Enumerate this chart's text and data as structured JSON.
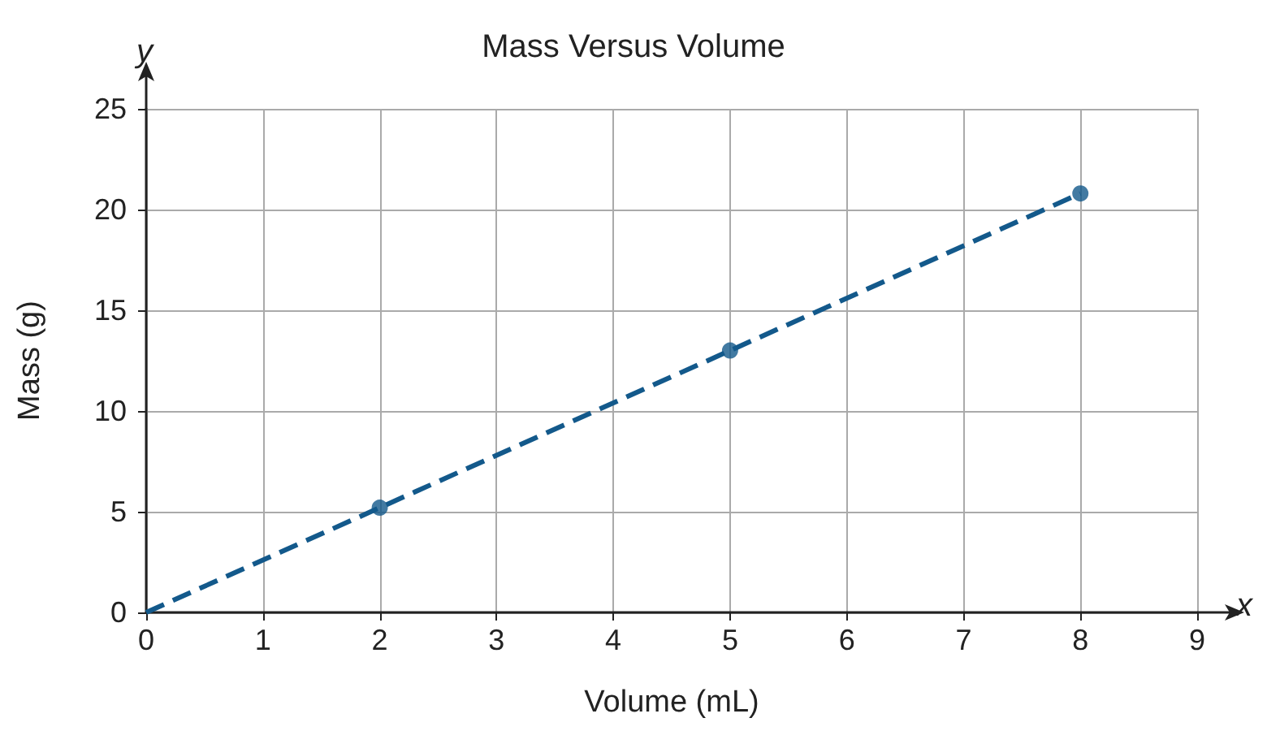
{
  "chart_data": {
    "type": "scatter",
    "title": "Mass Versus Volume",
    "xlabel": "Volume (mL)",
    "ylabel": "Mass (g)",
    "annotations": [
      "y",
      "x"
    ],
    "xlim": [
      0,
      9
    ],
    "xticks": [
      0,
      1,
      2,
      3,
      4,
      5,
      6,
      7,
      8,
      9
    ],
    "ylim": [
      0,
      25
    ],
    "yticks": [
      0,
      5,
      10,
      15,
      20,
      25
    ],
    "grid": true,
    "series": [
      {
        "type": "line",
        "color": "#13598b",
        "x": [
          0,
          8
        ],
        "values": [
          0,
          20.8
        ],
        "marker": "none",
        "line_style": "dashed"
      },
      {
        "type": "scatter",
        "color": "#13598b",
        "x": [
          2,
          5,
          8
        ],
        "values": [
          5.2,
          13,
          20.8
        ],
        "marker": "circle"
      }
    ]
  }
}
